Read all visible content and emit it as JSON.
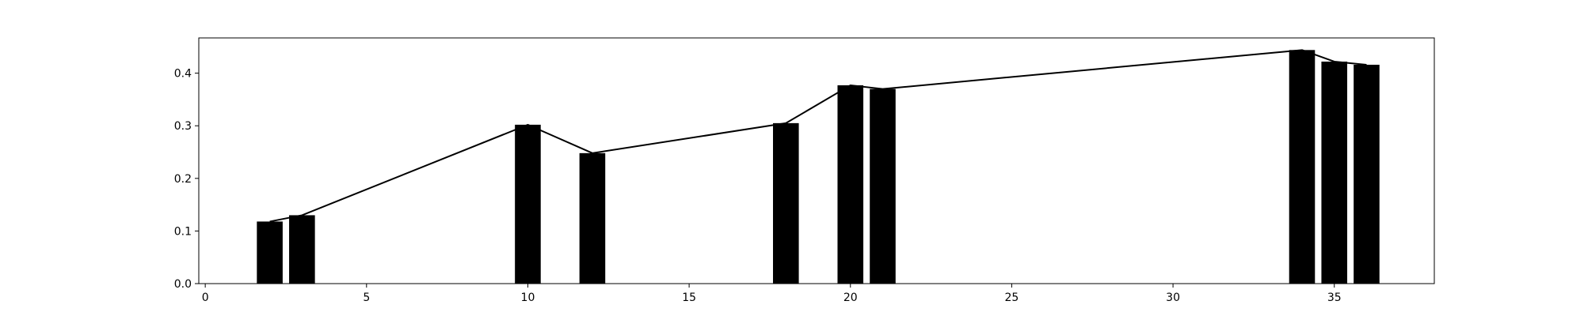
{
  "chart_data": {
    "type": "bar",
    "title": "",
    "xlabel": "",
    "ylabel": "",
    "x": [
      2,
      3,
      10,
      12,
      18,
      20,
      21,
      34,
      35,
      36
    ],
    "values": [
      0.118,
      0.13,
      0.302,
      0.248,
      0.305,
      0.377,
      0.37,
      0.444,
      0.422,
      0.416
    ],
    "line_values": [
      0.118,
      0.13,
      0.302,
      0.248,
      0.305,
      0.377,
      0.37,
      0.444,
      0.422,
      0.416
    ],
    "bar_width": 0.8,
    "xlim": [
      -0.2,
      38.1
    ],
    "ylim": [
      0,
      0.467
    ],
    "xticks": [
      0,
      5,
      10,
      15,
      20,
      25,
      30,
      35
    ],
    "xtick_labels": [
      "0",
      "5",
      "10",
      "15",
      "20",
      "25",
      "30",
      "35"
    ],
    "yticks": [
      0.0,
      0.1,
      0.2,
      0.3,
      0.4
    ],
    "ytick_labels": [
      "0.0",
      "0.1",
      "0.2",
      "0.3",
      "0.4"
    ],
    "grid": false,
    "bar_color": "#000000",
    "line_color": "#000000"
  }
}
